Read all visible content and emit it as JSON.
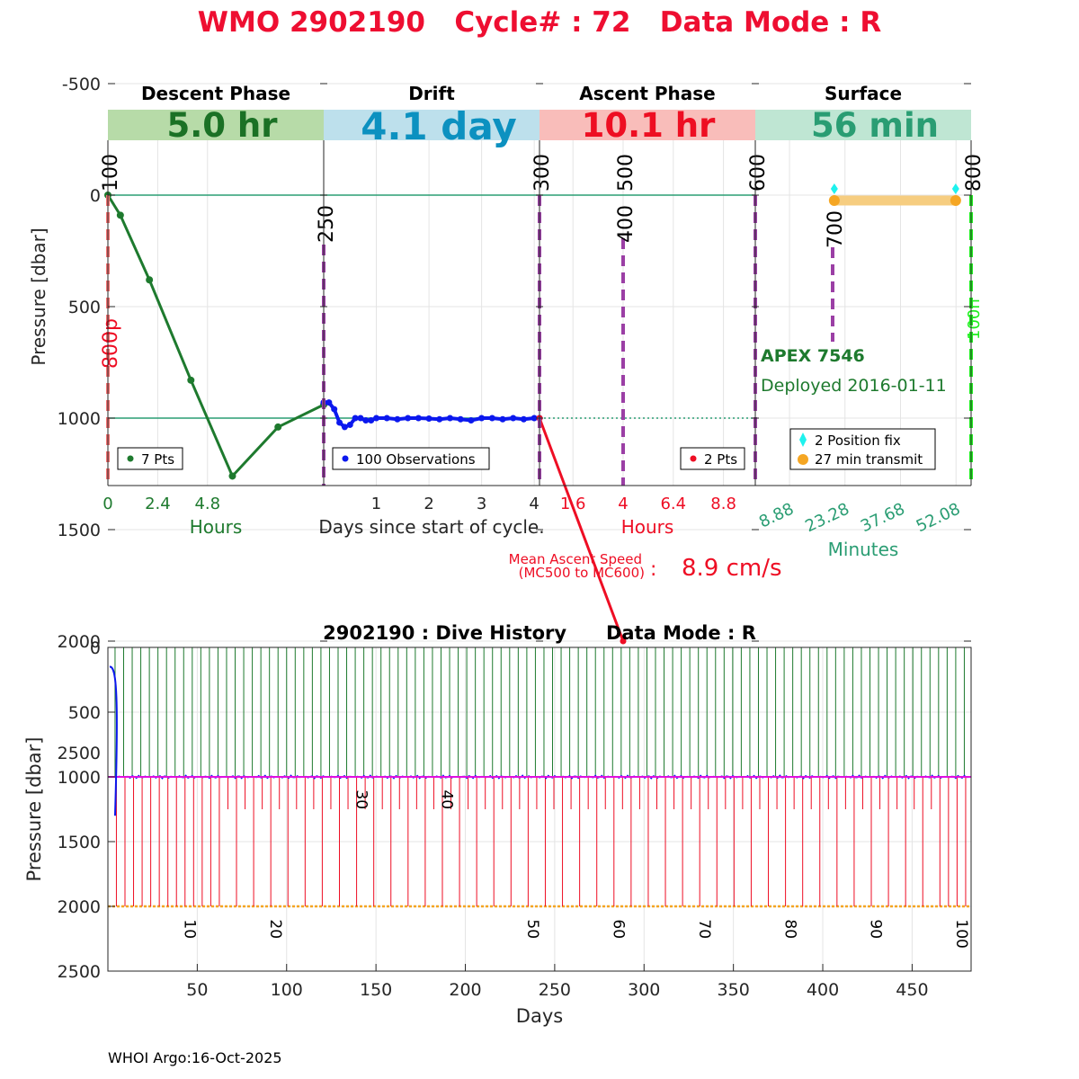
{
  "title": "WMO 2902190   Cycle# : 72   Data Mode : R",
  "colors": {
    "title": "#ee0e31",
    "descent": "#1e7a2e",
    "drift": "#0b18ee",
    "ascent": "#ee0e24",
    "surface": "#2a9d73",
    "mc": "#9b3fa5",
    "fix": "#1ef2ee",
    "transmit": "#f5a623",
    "transmit_band": "#f6cd80",
    "lime": "#1fee1f",
    "magenta": "#e010e0"
  },
  "phases": [
    {
      "name": "Descent Phase",
      "duration": "5.0 hr",
      "band_color": "#b7dba8",
      "text_color": "#1b7125"
    },
    {
      "name": "Drift",
      "duration": "4.1 day",
      "band_color": "#bde0ec",
      "text_color": "#0c91c0"
    },
    {
      "name": "Ascent Phase",
      "duration": "10.1 hr",
      "band_color": "#f9bdba",
      "text_color": "#ee0e22"
    },
    {
      "name": "Surface",
      "duration": "56 min",
      "band_color": "#bfe6d3",
      "text_color": "#2a9d73"
    }
  ],
  "top_chart": {
    "ylabel": "Pressure [dbar]",
    "y_ticks": [
      "-500",
      "0",
      "500",
      "1000",
      "1500",
      "2000",
      "2500"
    ],
    "x_labels": {
      "descent": [
        "0",
        "2.4",
        "4.8"
      ],
      "drift": [
        "1",
        "2",
        "3",
        "4"
      ],
      "ascent": [
        "1.6",
        "4",
        "6.4",
        "8.8"
      ],
      "surface": [
        "8.88",
        "23.28",
        "37.68",
        "52.08"
      ]
    },
    "unit_labels": {
      "descent": "Hours",
      "drift": "Days since start of cycle.",
      "ascent": "Hours",
      "surface": "Minutes"
    },
    "mission_codes": {
      "mc100": "100",
      "mc250": "250",
      "mc300": "300",
      "mc400": "400",
      "mc500": "500",
      "mc600": "600",
      "mc700": "700",
      "mc800": "800",
      "mc800p": "800p",
      "mc100n": "100n"
    },
    "legends": {
      "descent": "7 Pts",
      "drift": "100 Observations",
      "ascent": "2 Pts",
      "fix": "2 Position fix",
      "transmit": "27 min transmit"
    },
    "float_info": {
      "model": "APEX 7546",
      "deployed": "Deployed 2016-01-11"
    },
    "ascent_speed": {
      "label_line1": "Mean Ascent Speed",
      "label_line2": "(MC500 to MC600)",
      "colon": ":",
      "value": "8.9 cm/s"
    }
  },
  "chart_data": [
    {
      "type": "line",
      "title": "WMO 2902190   Cycle# : 72   Data Mode : R",
      "ylabel": "Pressure [dbar]",
      "ylim": [
        -500,
        2600
      ],
      "y_reversed": true,
      "series": [
        {
          "name": "7 Pts",
          "phase": "descent",
          "x_hours": [
            0,
            0.6,
            2.0,
            4.0,
            6.0,
            8.2,
            10.4
          ],
          "values": [
            0,
            90,
            380,
            830,
            1260,
            1040,
            940
          ]
        },
        {
          "name": "100 Observations",
          "phase": "drift",
          "x_days": [
            0.0,
            0.1,
            0.2,
            0.3,
            0.4,
            0.5,
            0.6,
            0.7,
            0.8,
            0.9,
            1.0,
            1.2,
            1.4,
            1.6,
            1.8,
            2.0,
            2.2,
            2.4,
            2.6,
            2.8,
            3.0,
            3.2,
            3.4,
            3.6,
            3.8,
            4.0,
            4.1
          ],
          "values": [
            930,
            930,
            960,
            1020,
            1040,
            1030,
            1000,
            1000,
            1010,
            1010,
            1000,
            1000,
            1005,
            1000,
            1000,
            1002,
            1005,
            1000,
            1005,
            1010,
            1000,
            1000,
            1005,
            1000,
            1005,
            1000,
            1000
          ]
        },
        {
          "name": "2 Pts",
          "phase": "ascent",
          "x_hours": [
            0,
            4
          ],
          "values": [
            1000,
            2000
          ]
        },
        {
          "name": "2 Position fix",
          "phase": "surface",
          "x_minutes": [
            20.5,
            52.0
          ],
          "values": [
            -40,
            -40
          ]
        },
        {
          "name": "27 min transmit",
          "phase": "surface",
          "x_minutes": [
            20.5,
            52.0
          ],
          "values": [
            50,
            50
          ]
        }
      ]
    },
    {
      "type": "line",
      "title": "2902190 : Dive History      Data Mode : R",
      "xlabel": "Days",
      "ylabel": "Pressure [dbar]",
      "xlim": [
        0,
        483
      ],
      "ylim": [
        0,
        2500
      ],
      "y_reversed": true,
      "x_ticks": [
        50,
        100,
        150,
        200,
        250,
        300,
        350,
        400,
        450
      ],
      "y_ticks": [
        0,
        500,
        1000,
        1500,
        2000,
        2500
      ],
      "cycle_labels": [
        {
          "label": "10",
          "day": 43,
          "pressure": 2100
        },
        {
          "label": "20",
          "day": 91,
          "pressure": 2100
        },
        {
          "label": "30",
          "day": 139,
          "pressure": 1100
        },
        {
          "label": "40",
          "day": 187,
          "pressure": 1100
        },
        {
          "label": "50",
          "day": 235,
          "pressure": 2100
        },
        {
          "label": "60",
          "day": 283,
          "pressure": 2100
        },
        {
          "label": "70",
          "day": 331,
          "pressure": 2100
        },
        {
          "label": "80",
          "day": 379,
          "pressure": 2100
        },
        {
          "label": "90",
          "day": 427,
          "pressure": 2100
        },
        {
          "label": "100",
          "day": 475,
          "pressure": 2100
        }
      ],
      "series": [
        {
          "name": "Park pressure",
          "values_approx": 1000
        },
        {
          "name": "Profile pressure",
          "values_approx": 2000
        }
      ]
    }
  ],
  "footer": "WHOI Argo:16-Oct-2025"
}
